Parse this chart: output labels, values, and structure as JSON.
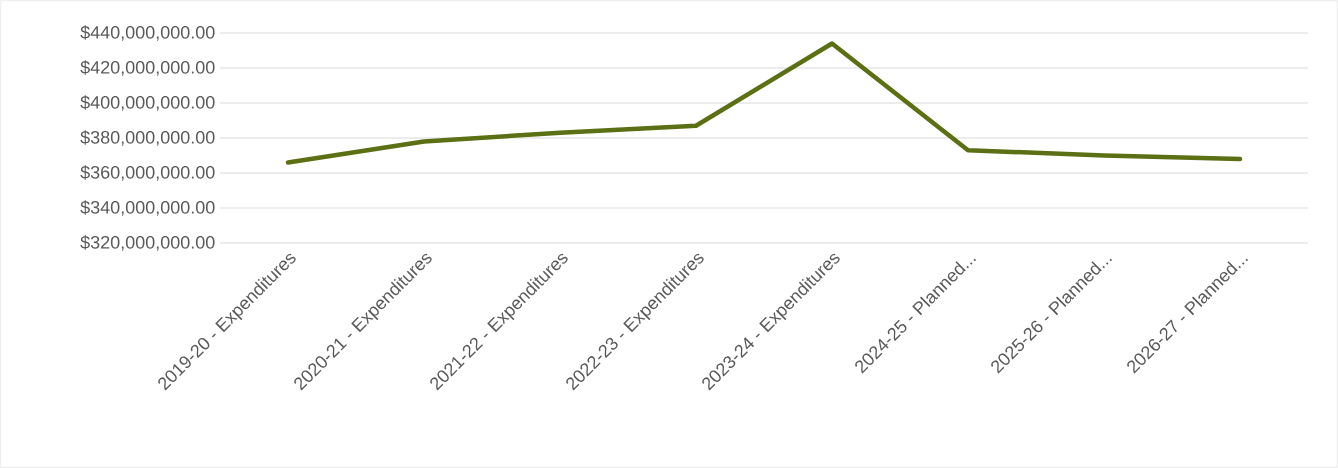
{
  "chart_data": {
    "type": "line",
    "categories": [
      "2019-20 - Expenditures",
      "2020-21 - Expenditures",
      "2021-22 - Expenditures",
      "2022-23 - Expenditures",
      "2023-24 - Expenditures",
      "2024-25 - Planned...",
      "2025-26 - Planned...",
      "2026-27 - Planned..."
    ],
    "series": [
      {
        "color": "#5b6f14",
        "values": [
          366000000,
          378000000,
          383000000,
          387000000,
          434000000,
          373000000,
          370000000,
          368000000
        ]
      }
    ],
    "ylim": [
      320000000,
      440000000
    ],
    "yticks": [
      {
        "value": 320000000,
        "label": "$320,000,000.00"
      },
      {
        "value": 340000000,
        "label": "$340,000,000.00"
      },
      {
        "value": 360000000,
        "label": "$360,000,000.00"
      },
      {
        "value": 380000000,
        "label": "$380,000,000.00"
      },
      {
        "value": 400000000,
        "label": "$400,000,000.00"
      },
      {
        "value": 420000000,
        "label": "$420,000,000.00"
      },
      {
        "value": 440000000,
        "label": "$440,000,000.00"
      }
    ],
    "grid": "y",
    "legend": false,
    "marker": "none",
    "line_style": "solid"
  }
}
